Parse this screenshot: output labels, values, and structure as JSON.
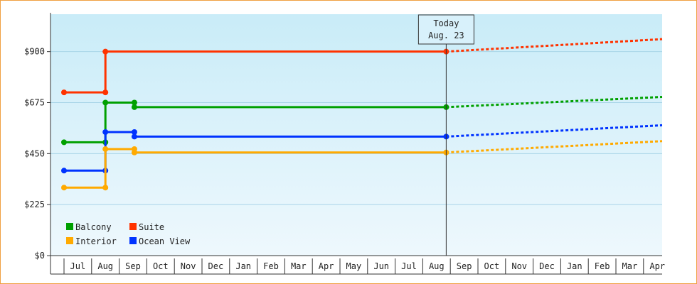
{
  "chart_data": {
    "type": "line",
    "style": "step",
    "y_ticks": [
      "$0",
      "$225",
      "$450",
      "$675",
      "$900"
    ],
    "y_tick_values": [
      0,
      225,
      450,
      675,
      900
    ],
    "ylim": [
      0,
      1065
    ],
    "x_months": [
      "Jul",
      "Aug",
      "Sep",
      "Oct",
      "Nov",
      "Dec",
      "Jan",
      "Feb",
      "Mar",
      "Apr",
      "May",
      "Jun",
      "Jul",
      "Aug",
      "Sep",
      "Oct",
      "Nov",
      "Dec",
      "Jan",
      "Feb",
      "Mar",
      "Apr"
    ],
    "today": {
      "line1": "Today",
      "line2": "Aug. 23",
      "month_index": 13.85
    },
    "grid": true,
    "legend_position": "bottom-left",
    "series": [
      {
        "name": "Suite",
        "color": "#ff3300",
        "history": [
          [
            0,
            720
          ],
          [
            1.5,
            720
          ],
          [
            1.5,
            900
          ],
          [
            13.85,
            900
          ]
        ],
        "forecast": [
          [
            13.85,
            900
          ],
          [
            22,
            955
          ]
        ]
      },
      {
        "name": "Balcony",
        "color": "#00a000",
        "history": [
          [
            0,
            500
          ],
          [
            1.5,
            500
          ],
          [
            1.5,
            675
          ],
          [
            2.55,
            675
          ],
          [
            2.55,
            655
          ],
          [
            13.85,
            655
          ]
        ],
        "forecast": [
          [
            13.85,
            655
          ],
          [
            22,
            700
          ]
        ]
      },
      {
        "name": "Ocean View",
        "color": "#0033ff",
        "history": [
          [
            0,
            375
          ],
          [
            1.5,
            375
          ],
          [
            1.5,
            545
          ],
          [
            2.55,
            545
          ],
          [
            2.55,
            525
          ],
          [
            13.85,
            525
          ]
        ],
        "forecast": [
          [
            13.85,
            525
          ],
          [
            22,
            575
          ]
        ]
      },
      {
        "name": "Interior",
        "color": "#ffaa00",
        "history": [
          [
            0,
            300
          ],
          [
            1.5,
            300
          ],
          [
            1.5,
            470
          ],
          [
            2.55,
            470
          ],
          [
            2.55,
            455
          ],
          [
            13.85,
            455
          ]
        ],
        "forecast": [
          [
            13.85,
            455
          ],
          [
            22,
            505
          ]
        ]
      }
    ],
    "legend": [
      {
        "label": "Balcony",
        "color": "#00a000"
      },
      {
        "label": "Suite",
        "color": "#ff3300"
      },
      {
        "label": "Interior",
        "color": "#ffaa00"
      },
      {
        "label": "Ocean View",
        "color": "#0033ff"
      }
    ]
  }
}
